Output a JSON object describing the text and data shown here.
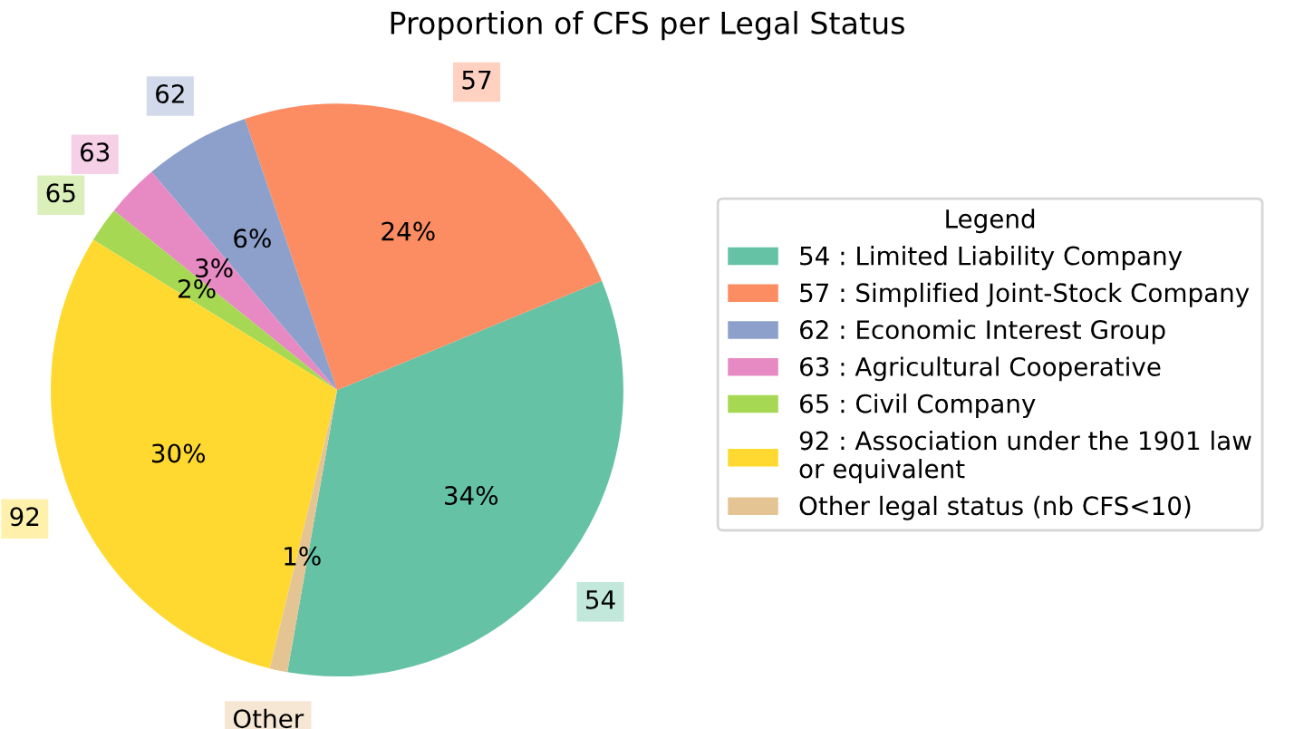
{
  "chart_data": {
    "type": "pie",
    "title": "Proportion of CFS per Legal Status",
    "categories": [
      "54 : Limited Liability Company",
      "57 : Simplified Joint-Stock Company",
      "62 : Economic Interest Group",
      "63 : Agricultural Cooperative",
      "65 : Civil Company",
      "92 : Association under the 1901 law\nor equivalent",
      "Other legal status (nb CFS<10)"
    ],
    "values": [
      34,
      24,
      6,
      3,
      2,
      30,
      1
    ],
    "value_labels": [
      "34%",
      "24%",
      "6%",
      "3%",
      "2%",
      "30%",
      "1%"
    ],
    "annotations": [
      "54",
      "57",
      "62",
      "63",
      "65",
      "92",
      "Other"
    ],
    "colors": [
      "#66c2a5",
      "#fc8d62",
      "#8da0cb",
      "#e78ac3",
      "#a6d854",
      "#ffd92f",
      "#e5c494"
    ],
    "legend": "right",
    "legend_title": "Legend"
  }
}
